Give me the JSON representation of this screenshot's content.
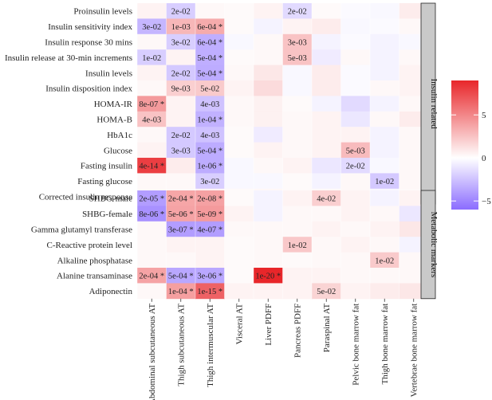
{
  "chart_data": {
    "type": "heatmap",
    "title": "",
    "xlabel": "",
    "ylabel": "",
    "columns": [
      "Abdominal subcutaneous AT",
      "Thigh subcutaneous AT",
      "Thigh intermuscular AT",
      "Visceral AT",
      "Liver PDFF",
      "Pancreas PDFF",
      "Paraspinal AT",
      "Pelvic bone marrow fat",
      "Thigh bone marrow fat",
      "Vertebrae bone marrow fat"
    ],
    "facets": [
      {
        "name": "Insulin related",
        "rows": [
          {
            "label": "Proinsulin levels",
            "values": [
              0.5,
              -2.0,
              0.3,
              0.2,
              0.5,
              -1.5,
              0.2,
              -0.2,
              -0.3,
              0.8
            ],
            "labels": [
              "",
              "2e-02",
              "",
              "",
              "",
              "2e-02",
              "",
              "",
              "",
              ""
            ]
          },
          {
            "label": "Insulin sensitivity index",
            "values": [
              -3.0,
              3.0,
              3.5,
              0.2,
              -0.5,
              0.5,
              0.8,
              -0.3,
              -0.2,
              0.3
            ],
            "labels": [
              "3e-02",
              "1e-03",
              "6e-04 *",
              "",
              "",
              "",
              "",
              "",
              "",
              ""
            ]
          },
          {
            "label": "Insulin response 30 mins",
            "values": [
              0.3,
              -2.0,
              -3.3,
              -0.3,
              0.3,
              2.5,
              -0.5,
              -0.2,
              -0.5,
              -0.3
            ],
            "labels": [
              "",
              "3e-02",
              "6e-04 *",
              "",
              "",
              "3e-03",
              "",
              "",
              "",
              ""
            ]
          },
          {
            "label": "Insulin release at 30-min increments",
            "values": [
              -2.0,
              0.5,
              -3.3,
              0.2,
              0.3,
              2.5,
              -0.8,
              0.3,
              -0.5,
              0.3
            ],
            "labels": [
              "1e-02",
              "",
              "5e-04 *",
              "",
              "",
              "5e-03",
              "",
              "",
              "",
              ""
            ]
          },
          {
            "label": "Insulin levels",
            "values": [
              0.5,
              -2.2,
              -3.4,
              0.3,
              1.0,
              -0.3,
              0.8,
              -0.2,
              -0.5,
              0.5
            ],
            "labels": [
              "",
              "2e-02",
              "5e-04 *",
              "",
              "",
              "",
              "",
              "",
              "",
              ""
            ]
          },
          {
            "label": "Insulin disposition index",
            "values": [
              0.3,
              2.0,
              2.2,
              0.5,
              1.5,
              -0.3,
              0.8,
              -0.2,
              0.3,
              0.5
            ],
            "labels": [
              "",
              "9e-03",
              "5e-02",
              "",
              "",
              "",
              "",
              "",
              "",
              ""
            ]
          },
          {
            "label": "HOMA-IR",
            "values": [
              4.2,
              0.5,
              -2.5,
              0.3,
              0.6,
              0.2,
              -0.5,
              -1.5,
              -0.5,
              0.3
            ],
            "labels": [
              "8e-07 *",
              "",
              "4e-03",
              "",
              "",
              "",
              "",
              "",
              "",
              ""
            ]
          },
          {
            "label": "HOMA-B",
            "values": [
              2.5,
              0.5,
              -3.2,
              0.3,
              0.6,
              0.3,
              0.5,
              -1.0,
              0.3,
              0.8
            ],
            "labels": [
              "4e-03",
              "",
              "1e-04 *",
              "",
              "",
              "",
              "",
              "",
              "",
              ""
            ]
          },
          {
            "label": "HbA1c",
            "values": [
              0.3,
              -2.2,
              -2.5,
              0.2,
              -0.8,
              0.3,
              0.5,
              0.5,
              -0.5,
              0.3
            ],
            "labels": [
              "",
              "2e-02",
              "4e-03",
              "",
              "",
              "",
              "",
              "",
              "",
              ""
            ]
          },
          {
            "label": "Glucose",
            "values": [
              0.5,
              -2.2,
              -3.4,
              0.2,
              0.5,
              0.3,
              0.5,
              2.8,
              -0.5,
              0.3
            ],
            "labels": [
              "",
              "3e-03",
              "5e-04 *",
              "",
              "",
              "",
              "",
              "5e-03",
              "",
              ""
            ]
          },
          {
            "label": "Fasting insulin",
            "values": [
              8.0,
              0.8,
              -3.4,
              -0.3,
              0.3,
              0.5,
              -1.0,
              -1.5,
              -0.3,
              0.3
            ],
            "labels": [
              "4e-14 *",
              "",
              "1e-06 *",
              "",
              "",
              "",
              "",
              "2e-02",
              "",
              ""
            ]
          },
          {
            "label": "Fasting glucose",
            "values": [
              0.3,
              0.3,
              -2.0,
              -0.3,
              -0.3,
              0.2,
              -0.5,
              0.3,
              -2.2,
              0.3
            ],
            "labels": [
              "",
              "",
              "3e-02",
              "",
              "",
              "",
              "",
              "",
              "1e-02",
              ""
            ]
          },
          {
            "label": "Corrected insulin response",
            "values": [
              0.3,
              0.3,
              0.5,
              0.2,
              0.3,
              0.2,
              0.3,
              0.3,
              -0.3,
              0.2
            ],
            "labels": [
              "",
              "",
              "",
              "",
              "",
              "",
              "",
              "",
              "",
              ""
            ]
          }
        ]
      },
      {
        "name": "Metabolic markers",
        "rows": [
          {
            "label": "SHBG-male",
            "values": [
              -4.0,
              3.7,
              3.9,
              0.2,
              -0.5,
              0.5,
              2.0,
              0.5,
              -0.5,
              0.5
            ],
            "labels": [
              "2e-05 *",
              "2e-04 *",
              "2e-08 *",
              "",
              "",
              "",
              "4e-02",
              "",
              "",
              ""
            ]
          },
          {
            "label": "SHBG-female",
            "values": [
              -4.5,
              3.8,
              4.2,
              0.5,
              -0.5,
              0.3,
              0.3,
              0.5,
              0.3,
              -1.0
            ],
            "labels": [
              "8e-06 *",
              "5e-06 *",
              "5e-09 *",
              "",
              "",
              "",
              "",
              "",
              "",
              ""
            ]
          },
          {
            "label": "Gamma glutamyl transferase",
            "values": [
              0.3,
              -4.0,
              -4.0,
              0.3,
              0.3,
              0.3,
              0.5,
              0.3,
              0.5,
              1.0
            ],
            "labels": [
              "",
              "3e-07 *",
              "4e-07 *",
              "",
              "",
              "",
              "",
              "",
              "",
              ""
            ]
          },
          {
            "label": "C-Reactive protein level",
            "values": [
              0.3,
              0.5,
              0.5,
              0.2,
              0.3,
              2.3,
              0.3,
              0.5,
              0.3,
              -0.5
            ],
            "labels": [
              "",
              "",
              "",
              "",
              "",
              "1e-02",
              "",
              "",
              "",
              ""
            ]
          },
          {
            "label": "Alkaline phosphatase",
            "values": [
              0.3,
              0.3,
              0.5,
              0.2,
              0.3,
              0.2,
              0.3,
              0.3,
              2.2,
              0.3
            ],
            "labels": [
              "",
              "",
              "",
              "",
              "",
              "",
              "",
              "",
              "1e-02",
              ""
            ]
          },
          {
            "label": "Alanine transaminase",
            "values": [
              3.8,
              -3.6,
              -3.6,
              0.2,
              9.0,
              0.5,
              0.5,
              0.3,
              0.3,
              0.3
            ],
            "labels": [
              "2e-04 *",
              "5e-04 *",
              "3e-06 *",
              "",
              "1e-20 *",
              "",
              "",
              "",
              "",
              ""
            ]
          },
          {
            "label": "Adiponectin",
            "values": [
              0.3,
              4.0,
              6.5,
              0.5,
              0.5,
              0.5,
              1.8,
              0.5,
              0.8,
              1.0
            ],
            "labels": [
              "",
              "1e-04 *",
              "1e-15 *",
              "",
              "",
              "",
              "5e-02",
              "",
              "",
              ""
            ]
          }
        ]
      }
    ],
    "color_scale": {
      "min": -6,
      "max": 9,
      "low": "#8b6cff",
      "mid": "#ffffff",
      "high": "#e8262a",
      "ticks": [
        5,
        0,
        -5
      ]
    },
    "legend": "right",
    "grid": false
  }
}
